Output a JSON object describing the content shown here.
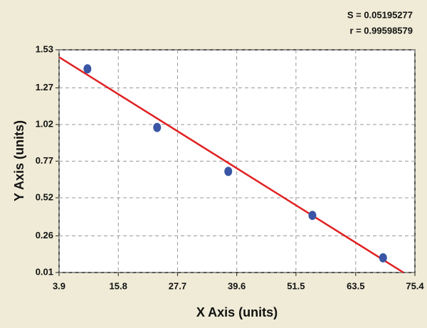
{
  "chart_data": {
    "type": "scatter",
    "annotations": [
      "S = 0.05195277",
      "r = 0.99598579"
    ],
    "x_label": "X Axis (units)",
    "y_label": "Y Axis (units)",
    "x": [
      9.6,
      23.6,
      37.9,
      54.8,
      69.0
    ],
    "values": [
      1.4,
      1.0,
      0.7,
      0.4,
      0.11
    ],
    "color": "#3a55a4",
    "fit": {
      "x": [
        3.9,
        73.1
      ],
      "values": [
        1.48,
        0.01
      ],
      "color": "#e02020"
    },
    "xlim": [
      3.9,
      75.4
    ],
    "ylim": [
      0.01,
      1.53
    ],
    "xticks": [
      3.9,
      15.8,
      27.7,
      39.6,
      51.5,
      63.5,
      75.4
    ],
    "yticks": [
      0.01,
      0.26,
      0.52,
      0.77,
      1.02,
      1.27,
      1.53
    ],
    "grid": true
  }
}
